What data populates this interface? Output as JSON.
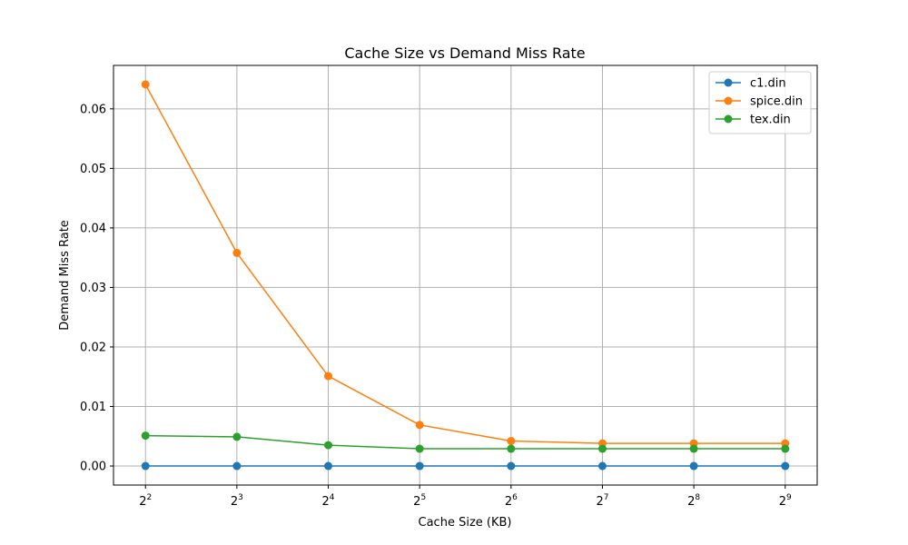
{
  "chart_data": {
    "type": "line",
    "title": "Cache Size vs Demand Miss Rate",
    "xlabel": "Cache Size (KB)",
    "ylabel": "Demand Miss Rate",
    "x_scale": "log2",
    "x": [
      4,
      8,
      16,
      32,
      64,
      128,
      256,
      512
    ],
    "x_tick_base": "2",
    "x_tick_exponents": [
      "2",
      "3",
      "4",
      "5",
      "6",
      "7",
      "8",
      "9"
    ],
    "y_ticks": [
      "0.00",
      "0.01",
      "0.02",
      "0.03",
      "0.04",
      "0.05",
      "0.06"
    ],
    "ylim": [
      -0.0032,
      0.0673
    ],
    "grid": true,
    "legend_position": "top-right",
    "series": [
      {
        "name": "c1.din",
        "color": "#1f77b4",
        "values": [
          0.0,
          0.0,
          0.0,
          0.0,
          0.0,
          0.0,
          0.0,
          0.0
        ]
      },
      {
        "name": "spice.din",
        "color": "#ff7f0e",
        "values": [
          0.0641,
          0.0358,
          0.0151,
          0.0069,
          0.0042,
          0.0038,
          0.0038,
          0.0038
        ]
      },
      {
        "name": "tex.din",
        "color": "#2ca02c",
        "values": [
          0.0051,
          0.0049,
          0.0035,
          0.0029,
          0.0029,
          0.0029,
          0.0029,
          0.0029
        ]
      }
    ]
  }
}
